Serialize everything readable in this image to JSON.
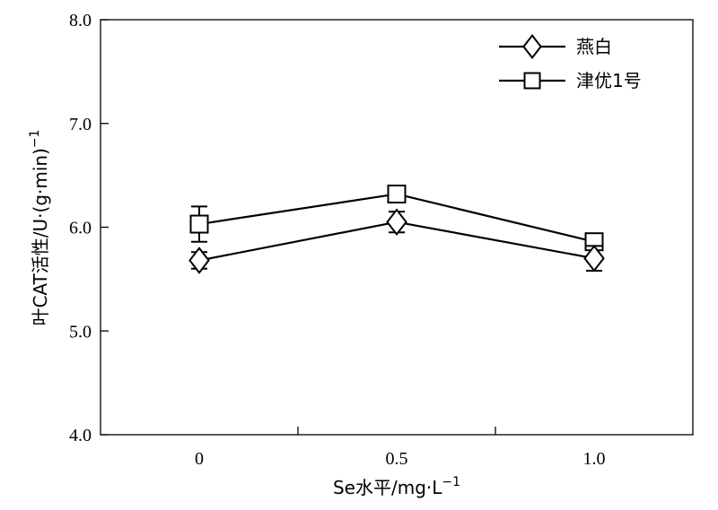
{
  "chart_data": {
    "type": "line",
    "title": "",
    "x": [
      0,
      0.5,
      1.0
    ],
    "x_tick_labels": [
      "0",
      "0.5",
      "1.0"
    ],
    "y_tick_labels": [
      "4.0",
      "5.0",
      "6.0",
      "7.0",
      "8.0"
    ],
    "xlabel": "Se水平/mg·L",
    "xlabel_sup": "−1",
    "ylabel": "叶CAT活性/U·(g·min)",
    "ylabel_sup": "−1",
    "xlim": [
      -0.25,
      1.25
    ],
    "ylim": [
      4.0,
      8.0
    ],
    "grid": false,
    "legend_position": "top-right",
    "series": [
      {
        "name": "燕白",
        "marker": "diamond",
        "values": [
          5.68,
          6.05,
          5.7
        ],
        "errors": [
          0.08,
          0.1,
          0.12
        ]
      },
      {
        "name": "津优1号",
        "marker": "square",
        "values": [
          6.03,
          6.32,
          5.86
        ],
        "errors": [
          0.17,
          0.05,
          0.08
        ]
      }
    ]
  }
}
